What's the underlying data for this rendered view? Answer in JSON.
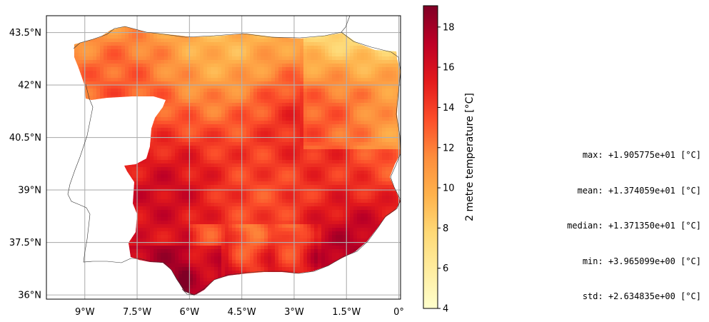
{
  "map": {
    "region": "Iberian Peninsula (Spain)",
    "projection": "PlateCarree",
    "gridlines": true,
    "coastlines": true,
    "extent": {
      "lon": [
        -10.1,
        0.05
      ],
      "lat": [
        35.88,
        43.98
      ]
    },
    "x_ticks": [
      {
        "lon": -9.0,
        "label": "9°W"
      },
      {
        "lon": -7.5,
        "label": "7.5°W"
      },
      {
        "lon": -6.0,
        "label": "6°W"
      },
      {
        "lon": -4.5,
        "label": "4.5°W"
      },
      {
        "lon": -3.0,
        "label": "3°W"
      },
      {
        "lon": -1.5,
        "label": "1.5°W"
      },
      {
        "lon": 0.0,
        "label": "0°"
      }
    ],
    "y_ticks": [
      {
        "lat": 43.5,
        "label": "43.5°N"
      },
      {
        "lat": 42.0,
        "label": "42°N"
      },
      {
        "lat": 40.5,
        "label": "40.5°N"
      },
      {
        "lat": 39.0,
        "label": "39°N"
      },
      {
        "lat": 37.5,
        "label": "37.5°N"
      },
      {
        "lat": 36.0,
        "label": "36°N"
      }
    ]
  },
  "colorbar": {
    "label": "2 metre temperature [°C]",
    "colormap": "YlOrRd",
    "range": [
      4,
      19.06
    ],
    "ticks": [
      {
        "value": 4,
        "label": "4"
      },
      {
        "value": 6,
        "label": "6"
      },
      {
        "value": 8,
        "label": "8"
      },
      {
        "value": 10,
        "label": "10"
      },
      {
        "value": 12,
        "label": "12"
      },
      {
        "value": 14,
        "label": "14"
      },
      {
        "value": 16,
        "label": "16"
      },
      {
        "value": 18,
        "label": "18"
      }
    ],
    "stops": [
      "#ffffcc",
      "#ffeda0",
      "#fed976",
      "#feb24c",
      "#fd8d3c",
      "#fc4e2a",
      "#e31a1c",
      "#bd0026",
      "#800026"
    ]
  },
  "stats": {
    "max": "max: +1.905775e+01 [°C]",
    "mean": "mean: +1.374059e+01 [°C]",
    "median": "median: +1.371350e+01 [°C]",
    "min": "min: +3.965099e+00 [°C]",
    "std": "std: +2.634835e+00 [°C]"
  }
}
